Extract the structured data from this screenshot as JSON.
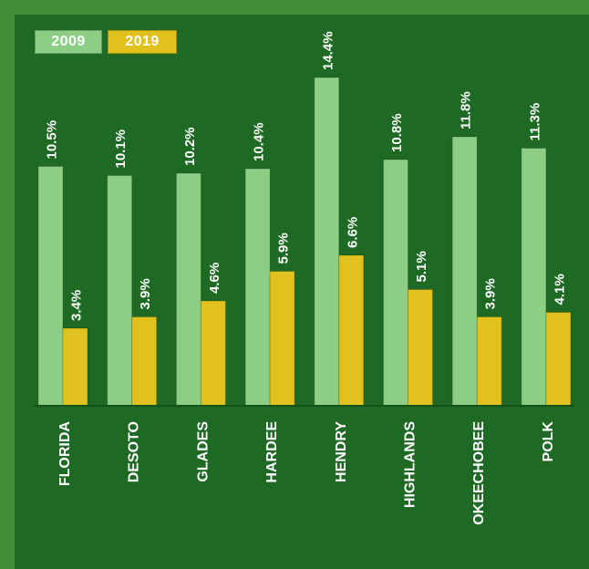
{
  "legend": {
    "series_a": "2009",
    "series_b": "2019"
  },
  "colors": {
    "background_outer": "#3f8f3a",
    "background_panel": "#1e6a25",
    "series_2009": "#8ccf84",
    "series_2019": "#e0c11d"
  },
  "chart_data": {
    "type": "bar",
    "categories": [
      "FLORIDA",
      "DESOTO",
      "GLADES",
      "HARDEE",
      "HENDRY",
      "HIGHLANDS",
      "OKEECHOBEE",
      "POLK"
    ],
    "series": [
      {
        "name": "2009",
        "values": [
          10.5,
          10.1,
          10.2,
          10.4,
          14.4,
          10.8,
          11.8,
          11.3
        ],
        "labels": [
          "10.5%",
          "10.1%",
          "10.2%",
          "10.4%",
          "14.4%",
          "10.8%",
          "11.8%",
          "11.3%"
        ]
      },
      {
        "name": "2019",
        "values": [
          3.4,
          3.9,
          4.6,
          5.9,
          6.6,
          5.1,
          3.9,
          4.1
        ],
        "labels": [
          "3.4%",
          "3.9%",
          "4.6%",
          "5.9%",
          "6.6%",
          "5.1%",
          "3.9%",
          "4.1%"
        ]
      }
    ],
    "title": "",
    "xlabel": "",
    "ylabel": "",
    "legend_position": "top-left",
    "grid": false
  }
}
